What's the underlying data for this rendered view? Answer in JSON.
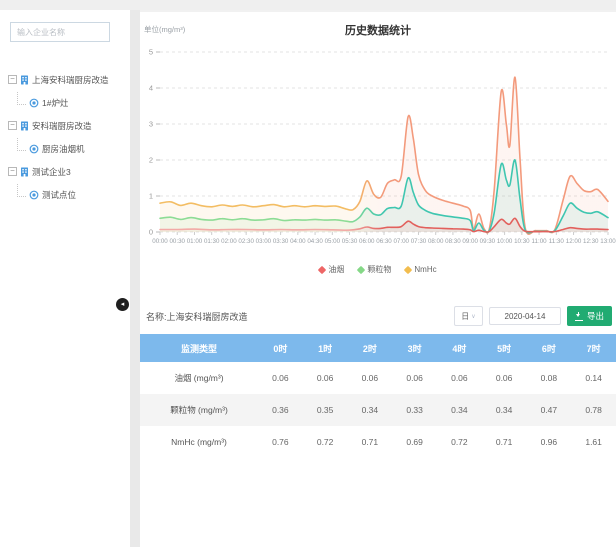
{
  "sidebar": {
    "search_placeholder": "输入企业名称",
    "tree": [
      {
        "label": "上海安科瑞厨房改造",
        "children": [
          "1#炉灶"
        ]
      },
      {
        "label": "安科瑞厨房改造",
        "children": [
          "厨房油烟机"
        ]
      },
      {
        "label": "测试企业3",
        "children": [
          "测试点位"
        ]
      }
    ]
  },
  "toolbar": {
    "name_label": "名称:上海安科瑞厨房改造",
    "period_select": "日",
    "date_value": "2020-04-14",
    "export_label": "导出"
  },
  "table": {
    "headers": [
      "监测类型",
      "0时",
      "1时",
      "2时",
      "3时",
      "4时",
      "5时",
      "6时",
      "7时"
    ],
    "rows": [
      {
        "label": "油烟 (mg/m³)",
        "values": [
          "0.06",
          "0.06",
          "0.06",
          "0.06",
          "0.06",
          "0.06",
          "0.08",
          "0.14"
        ]
      },
      {
        "label": "颗粒物 (mg/m³)",
        "values": [
          "0.36",
          "0.35",
          "0.34",
          "0.33",
          "0.34",
          "0.34",
          "0.47",
          "0.78"
        ]
      },
      {
        "label": "NmHc (mg/m³)",
        "values": [
          "0.76",
          "0.72",
          "0.71",
          "0.69",
          "0.72",
          "0.71",
          "0.96",
          "1.61"
        ]
      }
    ]
  },
  "chart_data": {
    "type": "line",
    "title": "历史数据统计",
    "unit_label": "单位(mg/m³)",
    "ylim": [
      0,
      5
    ],
    "yticks": [
      0,
      1,
      2,
      3,
      4,
      5
    ],
    "x_range_hours": [
      0,
      13
    ],
    "x_ticks": [
      "00:00",
      "00:30",
      "01:00",
      "01:30",
      "02:00",
      "02:30",
      "03:00",
      "03:30",
      "04:00",
      "04:30",
      "05:00",
      "05:30",
      "06:00",
      "06:30",
      "07:00",
      "07:30",
      "08:00",
      "08:30",
      "09:00",
      "09:30",
      "10:00",
      "10:30",
      "11:00",
      "11:30",
      "12:00",
      "12:30",
      "13:00"
    ],
    "grid": "dashed-horizontal",
    "legend_position": "bottom",
    "series": [
      {
        "name": "油烟",
        "legend_color": "#ee6666",
        "color_start": "#f2aaa6",
        "color_end": "#e2605c",
        "points": [
          [
            0,
            0.07
          ],
          [
            0.5,
            0.07
          ],
          [
            1,
            0.08
          ],
          [
            1.5,
            0.06
          ],
          [
            2,
            0.07
          ],
          [
            2.5,
            0.07
          ],
          [
            3,
            0.06
          ],
          [
            3.5,
            0.07
          ],
          [
            4,
            0.06
          ],
          [
            4.5,
            0.07
          ],
          [
            5,
            0.06
          ],
          [
            5.4,
            0.05
          ],
          [
            5.6,
            0.06
          ],
          [
            5.8,
            0.09
          ],
          [
            6.0,
            0.14
          ],
          [
            6.2,
            0.1
          ],
          [
            6.4,
            0.1
          ],
          [
            6.6,
            0.13
          ],
          [
            6.8,
            0.13
          ],
          [
            7.0,
            0.15
          ],
          [
            7.2,
            0.3
          ],
          [
            7.35,
            0.22
          ],
          [
            7.5,
            0.15
          ],
          [
            7.7,
            0.12
          ],
          [
            7.9,
            0.11
          ],
          [
            8.2,
            0.1
          ],
          [
            8.5,
            0.09
          ],
          [
            8.8,
            0.08
          ],
          [
            9.0,
            0.06
          ],
          [
            9.1,
            0.01
          ],
          [
            9.25,
            0.05
          ],
          [
            9.4,
            0.01
          ],
          [
            9.55,
            0.01
          ],
          [
            9.7,
            0.15
          ],
          [
            9.9,
            0.35
          ],
          [
            10.05,
            0.25
          ],
          [
            10.15,
            0.22
          ],
          [
            10.3,
            0.38
          ],
          [
            10.45,
            0.15
          ],
          [
            10.6,
            0.02
          ],
          [
            10.9,
            0.01
          ],
          [
            11.2,
            0.01
          ],
          [
            11.45,
            0.01
          ],
          [
            11.7,
            0.07
          ],
          [
            11.9,
            0.12
          ],
          [
            12.1,
            0.1
          ],
          [
            12.3,
            0.08
          ],
          [
            12.5,
            0.08
          ],
          [
            12.7,
            0.08
          ],
          [
            13,
            0.07
          ]
        ]
      },
      {
        "name": "颗粒物",
        "legend_color": "#85d887",
        "color_start": "#8ddc95",
        "color_end": "#3fc6b0",
        "points": [
          [
            0,
            0.38
          ],
          [
            0.3,
            0.41
          ],
          [
            0.6,
            0.35
          ],
          [
            0.9,
            0.4
          ],
          [
            1.2,
            0.35
          ],
          [
            1.5,
            0.33
          ],
          [
            1.8,
            0.37
          ],
          [
            2.1,
            0.34
          ],
          [
            2.4,
            0.37
          ],
          [
            2.7,
            0.33
          ],
          [
            3.0,
            0.34
          ],
          [
            3.3,
            0.37
          ],
          [
            3.6,
            0.32
          ],
          [
            3.9,
            0.34
          ],
          [
            4.2,
            0.33
          ],
          [
            4.5,
            0.35
          ],
          [
            4.8,
            0.33
          ],
          [
            5.1,
            0.34
          ],
          [
            5.4,
            0.3
          ],
          [
            5.6,
            0.29
          ],
          [
            5.8,
            0.42
          ],
          [
            6.0,
            0.66
          ],
          [
            6.2,
            0.5
          ],
          [
            6.4,
            0.48
          ],
          [
            6.6,
            0.65
          ],
          [
            6.8,
            0.68
          ],
          [
            7.0,
            0.72
          ],
          [
            7.2,
            1.5
          ],
          [
            7.35,
            1.1
          ],
          [
            7.5,
            0.75
          ],
          [
            7.7,
            0.6
          ],
          [
            7.9,
            0.52
          ],
          [
            8.2,
            0.46
          ],
          [
            8.5,
            0.42
          ],
          [
            8.8,
            0.38
          ],
          [
            9.0,
            0.32
          ],
          [
            9.1,
            0.04
          ],
          [
            9.25,
            0.25
          ],
          [
            9.4,
            0.05
          ],
          [
            9.55,
            0.03
          ],
          [
            9.7,
            0.55
          ],
          [
            9.9,
            1.88
          ],
          [
            10.05,
            1.45
          ],
          [
            10.15,
            1.3
          ],
          [
            10.3,
            2.0
          ],
          [
            10.45,
            0.9
          ],
          [
            10.6,
            0.05
          ],
          [
            10.9,
            0.02
          ],
          [
            11.2,
            0.02
          ],
          [
            11.45,
            0.03
          ],
          [
            11.7,
            0.45
          ],
          [
            11.9,
            0.8
          ],
          [
            12.1,
            0.66
          ],
          [
            12.3,
            0.55
          ],
          [
            12.5,
            0.52
          ],
          [
            12.7,
            0.56
          ],
          [
            13,
            0.4
          ]
        ]
      },
      {
        "name": "NmHc",
        "legend_color": "#f2bd4f",
        "color_start": "#f3bd63",
        "color_end": "#f39a7c",
        "points": [
          [
            0,
            0.8
          ],
          [
            0.3,
            0.84
          ],
          [
            0.6,
            0.74
          ],
          [
            0.9,
            0.8
          ],
          [
            1.2,
            0.73
          ],
          [
            1.5,
            0.7
          ],
          [
            1.8,
            0.75
          ],
          [
            2.1,
            0.71
          ],
          [
            2.4,
            0.75
          ],
          [
            2.7,
            0.7
          ],
          [
            3.0,
            0.73
          ],
          [
            3.3,
            0.76
          ],
          [
            3.6,
            0.7
          ],
          [
            3.9,
            0.73
          ],
          [
            4.2,
            0.7
          ],
          [
            4.5,
            0.73
          ],
          [
            4.8,
            0.71
          ],
          [
            5.1,
            0.72
          ],
          [
            5.4,
            0.64
          ],
          [
            5.6,
            0.62
          ],
          [
            5.8,
            0.85
          ],
          [
            6.0,
            1.42
          ],
          [
            6.2,
            1.05
          ],
          [
            6.4,
            0.96
          ],
          [
            6.6,
            1.35
          ],
          [
            6.8,
            1.45
          ],
          [
            7.0,
            1.55
          ],
          [
            7.2,
            3.2
          ],
          [
            7.35,
            2.6
          ],
          [
            7.5,
            1.6
          ],
          [
            7.7,
            1.15
          ],
          [
            7.9,
            1.0
          ],
          [
            8.2,
            0.88
          ],
          [
            8.5,
            0.8
          ],
          [
            8.8,
            0.72
          ],
          [
            9.0,
            0.6
          ],
          [
            9.1,
            0.08
          ],
          [
            9.25,
            0.5
          ],
          [
            9.4,
            0.1
          ],
          [
            9.55,
            0.06
          ],
          [
            9.7,
            1.2
          ],
          [
            9.9,
            3.9
          ],
          [
            10.05,
            3.0
          ],
          [
            10.15,
            2.4
          ],
          [
            10.3,
            4.3
          ],
          [
            10.45,
            2.0
          ],
          [
            10.6,
            0.1
          ],
          [
            10.9,
            0.04
          ],
          [
            11.2,
            0.04
          ],
          [
            11.45,
            0.05
          ],
          [
            11.7,
            0.9
          ],
          [
            11.9,
            1.55
          ],
          [
            12.1,
            1.35
          ],
          [
            12.3,
            1.15
          ],
          [
            12.5,
            1.12
          ],
          [
            12.7,
            1.18
          ],
          [
            13,
            0.85
          ]
        ]
      }
    ]
  }
}
